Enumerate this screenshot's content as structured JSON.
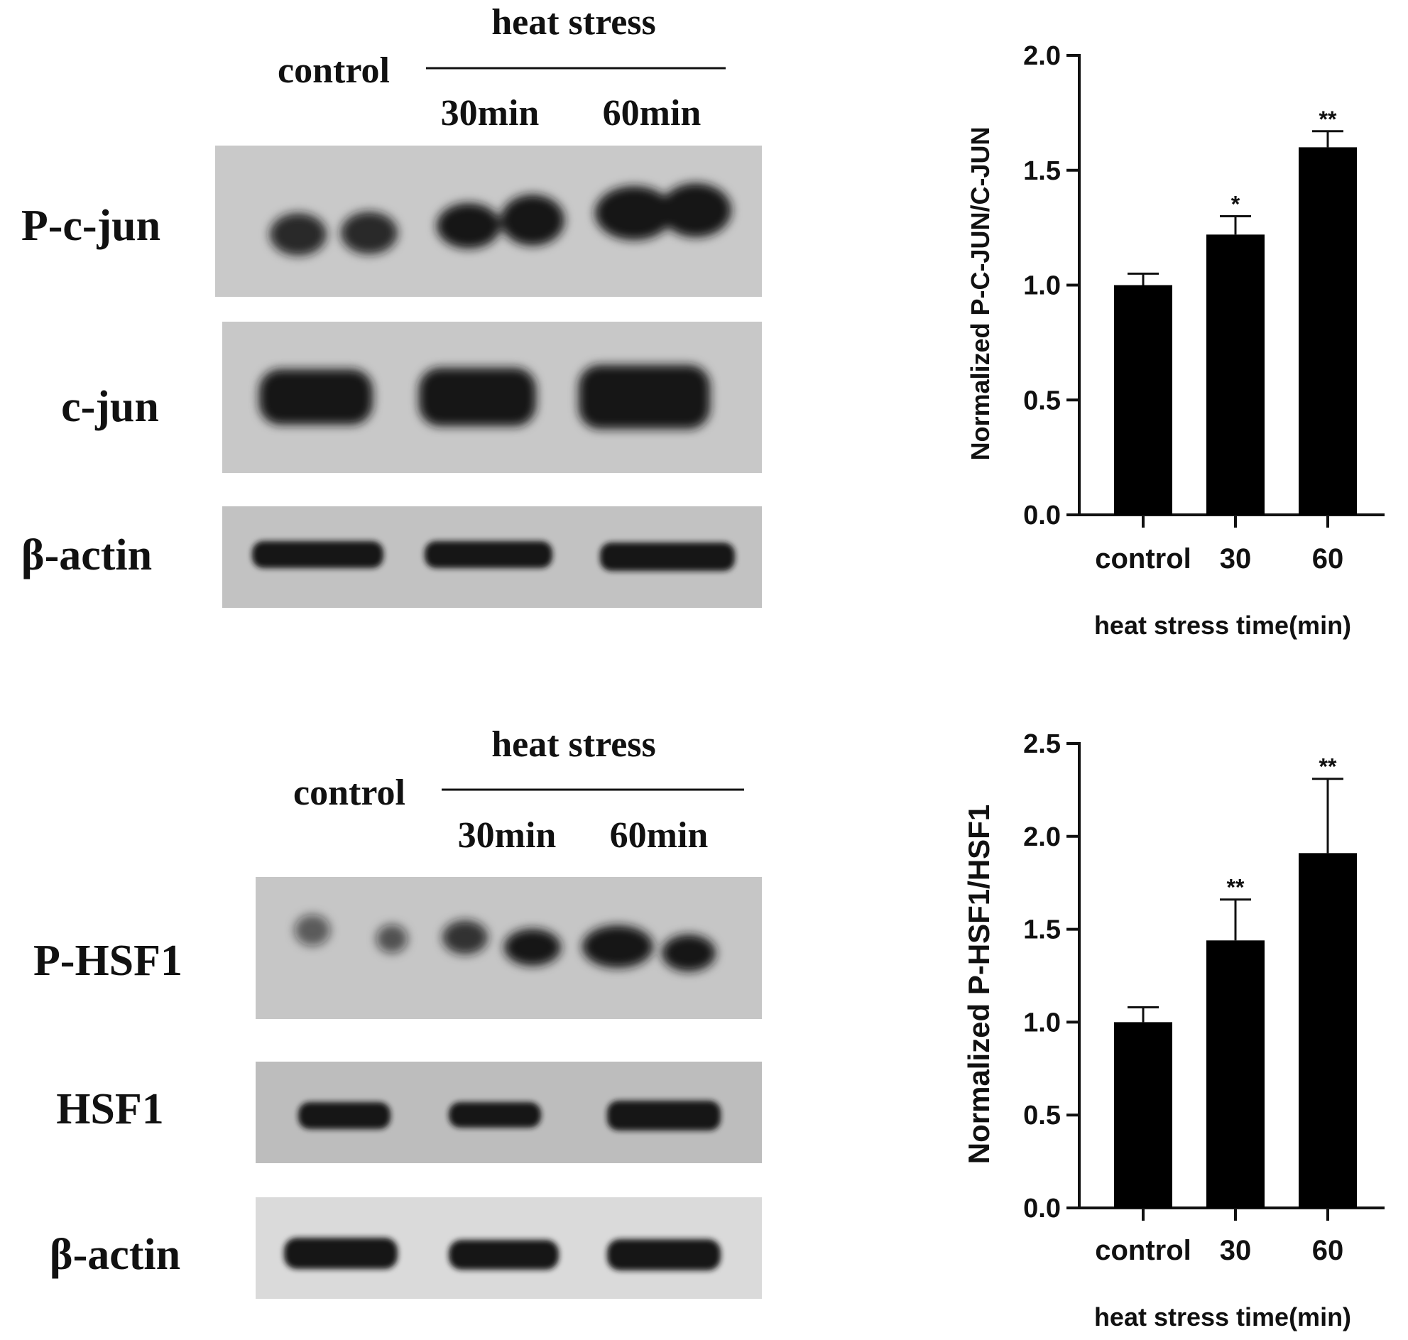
{
  "blot_panels": [
    {
      "group_header": "heat stress",
      "control_label": "control",
      "lane_labels": [
        "30min",
        "60min"
      ],
      "rows": [
        {
          "label": "P-c-jun"
        },
        {
          "label": "c-jun"
        },
        {
          "label": "β-actin"
        }
      ]
    },
    {
      "group_header": "heat stress",
      "control_label": "control",
      "lane_labels": [
        "30min",
        "60min"
      ],
      "rows": [
        {
          "label": "P-HSF1"
        },
        {
          "label": "HSF1"
        },
        {
          "label": "β-actin"
        }
      ]
    }
  ],
  "chart_data": [
    {
      "type": "bar",
      "categories": [
        "control",
        "30",
        "60"
      ],
      "values": [
        1.0,
        1.22,
        1.6
      ],
      "errors": [
        0.05,
        0.08,
        0.07
      ],
      "significance": [
        "",
        "*",
        "**"
      ],
      "xlabel": "heat stress time(min)",
      "ylabel": "Normalized P-C-JUN/C-JUN",
      "ylim": [
        0,
        2.0
      ],
      "yticks": [
        "0.0",
        "0.5",
        "1.0",
        "1.5",
        "2.0"
      ],
      "grid": false,
      "bar_color": "#000000"
    },
    {
      "type": "bar",
      "categories": [
        "control",
        "30",
        "60"
      ],
      "values": [
        1.0,
        1.44,
        1.91
      ],
      "errors": [
        0.08,
        0.22,
        0.4
      ],
      "significance": [
        "",
        "**",
        "**"
      ],
      "xlabel": "heat stress time(min)",
      "ylabel": "Normalized P-HSF1/HSF1",
      "ylim": [
        0,
        2.5
      ],
      "yticks": [
        "0.0",
        "0.5",
        "1.0",
        "1.5",
        "2.0",
        "2.5"
      ],
      "grid": false,
      "bar_color": "#000000"
    }
  ]
}
